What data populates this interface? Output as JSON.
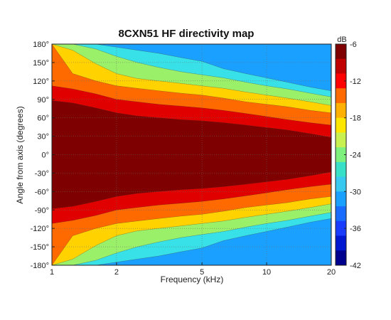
{
  "chart_data": {
    "type": "heatmap",
    "title": "8CXN51 HF directivity map",
    "xlabel": "Frequency (kHz)",
    "ylabel": "Angle from axis (degrees)",
    "x_scale": "log",
    "xlim": [
      1,
      20
    ],
    "ylim": [
      -180,
      180
    ],
    "x_ticks": [
      1,
      2,
      5,
      10,
      20
    ],
    "x_tick_labels": [
      "1",
      "2",
      "5",
      "10",
      "20"
    ],
    "y_ticks": [
      180,
      150,
      120,
      90,
      60,
      30,
      0,
      -30,
      -60,
      -90,
      -120,
      -150,
      -180
    ],
    "y_tick_labels": [
      "180°",
      "150°",
      "120°",
      "90°",
      "60°",
      "30°",
      "0°",
      "-30°",
      "-60°",
      "-90°",
      "-120°",
      "-150°",
      "-180°"
    ],
    "grid": true,
    "colorbar": {
      "unit": "dB",
      "min": -42,
      "max": -6,
      "ticks": [
        -6,
        -12,
        -18,
        -24,
        -30,
        -36,
        -42
      ],
      "tick_labels": [
        "-6",
        "-12",
        "-18",
        "-24",
        "-30",
        "-36",
        "-42"
      ],
      "level_colors": [
        "#7f0000",
        "#e00000",
        "#ff6a00",
        "#ffd200",
        "#9bf06a",
        "#38e0e8",
        "#1aa0ff",
        "#1a4cff",
        "#00008f"
      ]
    },
    "contour_levels_db": [
      -6,
      -10,
      -14,
      -18,
      -22,
      -26,
      -30,
      -34,
      -38,
      -42
    ],
    "frequency_khz": [
      1,
      1.25,
      1.6,
      2,
      2.5,
      3.15,
      4,
      5,
      6.3,
      8,
      10,
      12.5,
      16,
      20
    ],
    "contour_boundaries_deg": {
      "-6": [
        88,
        84,
        76,
        68,
        63,
        60,
        57,
        55,
        52,
        48,
        44,
        40,
        34,
        28
      ],
      "-10": [
        112,
        107,
        99,
        90,
        86,
        82,
        79,
        76,
        72,
        67,
        62,
        57,
        52,
        48
      ],
      "-14": [
        180,
        132,
        120,
        112,
        108,
        104,
        100,
        97,
        92,
        86,
        82,
        78,
        72,
        68
      ],
      "-18": [
        180,
        170,
        148,
        132,
        124,
        120,
        116,
        112,
        108,
        102,
        97,
        92,
        86,
        80
      ],
      "-22": [
        180,
        180,
        172,
        160,
        150,
        142,
        135,
        130,
        125,
        118,
        112,
        107,
        100,
        94
      ],
      "-26": [
        180,
        180,
        180,
        175,
        170,
        165,
        158,
        152,
        140,
        132,
        125,
        118,
        110,
        104
      ]
    }
  }
}
